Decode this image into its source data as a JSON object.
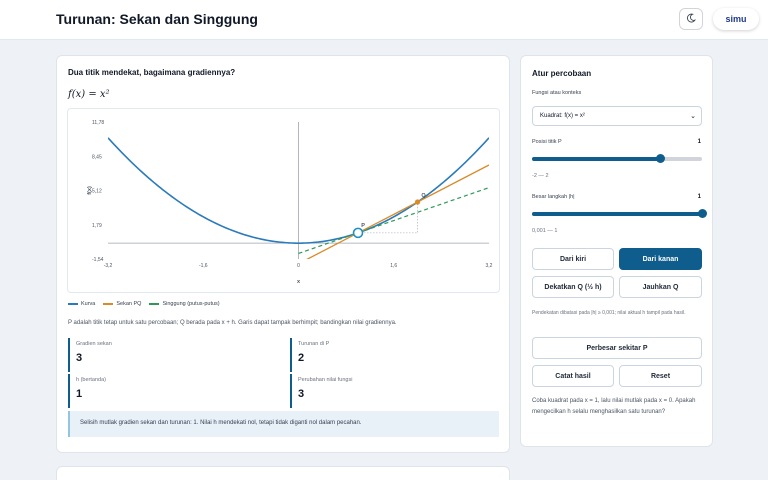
{
  "app": {
    "title": "Turunan: Sekan dan Singgung",
    "logo_text": "simu"
  },
  "main": {
    "question": "Dua titik mendekat, bagaimana gradiennya?",
    "formula": "f(x) = x²",
    "legend": [
      {
        "label": "Kurva",
        "color": "#2b7bbb"
      },
      {
        "label": "Sekan PQ",
        "color": "#d98a29"
      },
      {
        "label": "Singgung (putus-putus)",
        "color": "#2e9a55"
      }
    ],
    "description": "P adalah titik tetap untuk satu percobaan; Q berada pada x + h. Garis dapat tampak berhimpit; bandingkan nilai gradiennya.",
    "stats": [
      {
        "label": "Gradien sekan",
        "value": "3"
      },
      {
        "label": "Turunan di P",
        "value": "2"
      },
      {
        "label": "h (bertanda)",
        "value": "1"
      },
      {
        "label": "Perubahan nilai fungsi",
        "value": "3"
      }
    ],
    "note": "Selisih mutlak gradien sekan dan turunan: 1. Nilai h mendekati nol, tetapi tidak diganti nol dalam pecahan."
  },
  "chart_data": {
    "type": "line",
    "xlabel": "x",
    "ylabel": "f(x)",
    "xlim": [
      -3.2,
      3.2
    ],
    "ylim": [
      -1.54,
      11.78
    ],
    "x_ticks": [
      "-3,2",
      "-1,6",
      "0",
      "1,6",
      "3,2"
    ],
    "y_ticks": [
      "11,78",
      "8,45",
      "5,12",
      "1,79",
      "-1,54"
    ],
    "point_labels": [
      "P",
      "Q"
    ],
    "P": {
      "x": 1,
      "y": 1
    },
    "Q": {
      "x": 2,
      "y": 4
    },
    "series": [
      {
        "name": "Kurva",
        "function": "x^2",
        "color": "#2b7bbb"
      },
      {
        "name": "Sekan PQ",
        "slope": 3,
        "through": [
          1,
          1
        ],
        "color": "#d98a29"
      },
      {
        "name": "Singgung (putus-putus)",
        "slope": 2,
        "through": [
          1,
          1
        ],
        "color": "#2e9a55"
      }
    ],
    "grid": false
  },
  "side": {
    "title": "Atur percobaan",
    "function_label": "Fungsi atau konteks",
    "function_value": "Kuadrat: f(x) = x²",
    "p_label": "Posisi titik P",
    "p_value": "1",
    "p_fraction": 0.75,
    "p_range": "-2 — 2",
    "h_label": "Besar langkah |h|",
    "h_value": "1",
    "h_fraction": 1.0,
    "h_range": "0,001 — 1",
    "buttons": {
      "left": "Dari kiri",
      "right": "Dari kanan",
      "closer": "Dekatkan Q (½ h)",
      "farther": "Jauhkan Q",
      "zoom": "Perbesar sekitar P",
      "record": "Catat hasil",
      "reset": "Reset"
    },
    "small_note": "Pendekatan dibatasi pada |h| ≥ 0,001; nilai aktual h tampil pada hasil.",
    "hint": "Coba kuadrat pada x = 1, lalu nilai mutlak pada x = 0. Apakah mengecilkan h selalu menghasilkan satu turunan?"
  }
}
